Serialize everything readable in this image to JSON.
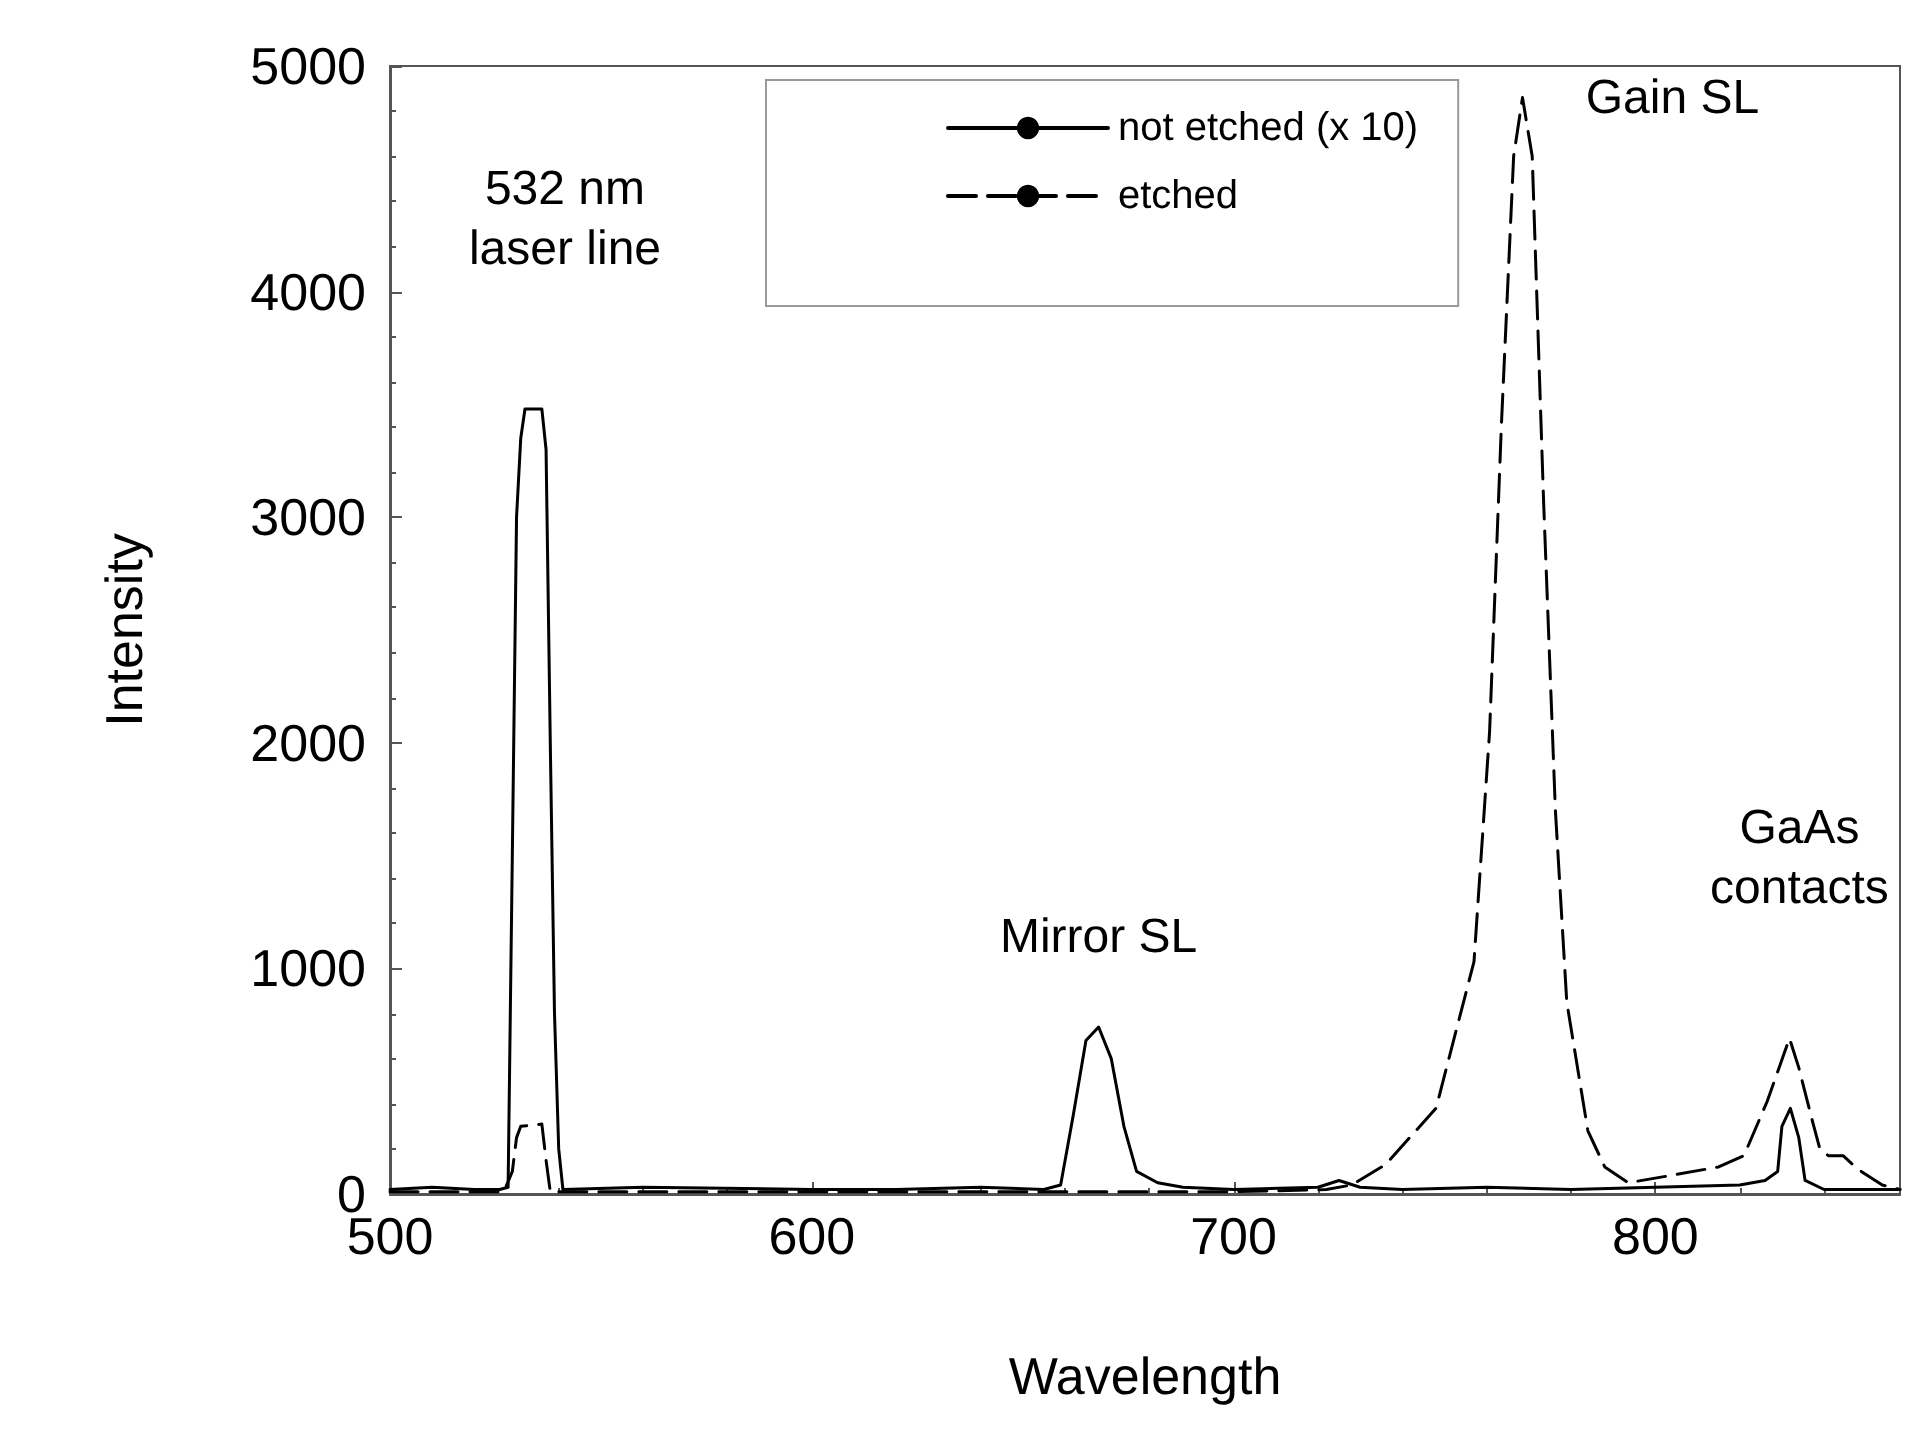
{
  "chart_data": {
    "type": "line",
    "xlabel": "Wavelength",
    "ylabel": "Intensity",
    "xlim": [
      500,
      858
    ],
    "xticks": [
      500,
      600,
      700,
      800
    ],
    "ylim": [
      0,
      5000
    ],
    "yticks": [
      0,
      1000,
      2000,
      3000,
      4000,
      5000
    ],
    "grid": false,
    "legend": "top",
    "marker": "none",
    "series": [
      {
        "name": "not etched (x 10)",
        "color": "#000000",
        "line_style": "solid",
        "x": [
          500,
          510,
          520,
          526,
          528,
          529,
          530,
          531,
          532,
          536,
          537,
          538,
          539,
          540,
          541,
          560,
          600,
          620,
          640,
          655,
          659,
          662,
          665,
          668,
          671,
          674,
          677,
          682,
          688,
          700,
          720,
          725,
          730,
          740,
          760,
          780,
          800,
          820,
          826,
          829,
          830,
          832,
          834,
          835.5,
          840,
          850,
          858
        ],
        "values": [
          20,
          30,
          20,
          20,
          30,
          1500,
          3000,
          3350,
          3480,
          3480,
          3300,
          2000,
          800,
          200,
          20,
          30,
          20,
          20,
          30,
          20,
          40,
          350,
          680,
          740,
          600,
          300,
          100,
          50,
          30,
          20,
          30,
          60,
          30,
          20,
          30,
          20,
          30,
          40,
          60,
          100,
          300,
          380,
          250,
          60,
          20,
          20,
          20
        ]
      },
      {
        "name": "etched",
        "color": "#000000",
        "line_style": "dashed",
        "x": [
          500,
          527,
          529,
          530,
          531,
          536,
          537,
          538,
          600,
          700,
          722,
          728,
          736,
          748,
          757,
          760.7,
          763.5,
          766.4,
          768.5,
          770.8,
          773.5,
          776.3,
          779,
          784,
          788,
          793.6,
          803,
          815,
          821,
          826.5,
          831.8,
          834,
          837,
          839,
          841,
          844.5,
          848,
          853.8,
          858
        ],
        "values": [
          10,
          10,
          100,
          250,
          300,
          310,
          150,
          10,
          10,
          10,
          20,
          40,
          130,
          380,
          1030,
          2050,
          3410,
          4600,
          4860,
          4600,
          3070,
          1700,
          850,
          280,
          120,
          50,
          80,
          120,
          170,
          410,
          690,
          560,
          340,
          200,
          170,
          170,
          110,
          40,
          20
        ]
      }
    ],
    "annotations": [
      {
        "text": "532 nm\nlaser line",
        "x": 532,
        "y": 3480
      },
      {
        "text": "Mirror SL",
        "x": 668,
        "y": 740
      },
      {
        "text": "Gain SL",
        "x": 768.5,
        "y": 4860
      },
      {
        "text": "GaAs\ncontacts",
        "x": 831.8,
        "y": 690
      }
    ]
  }
}
